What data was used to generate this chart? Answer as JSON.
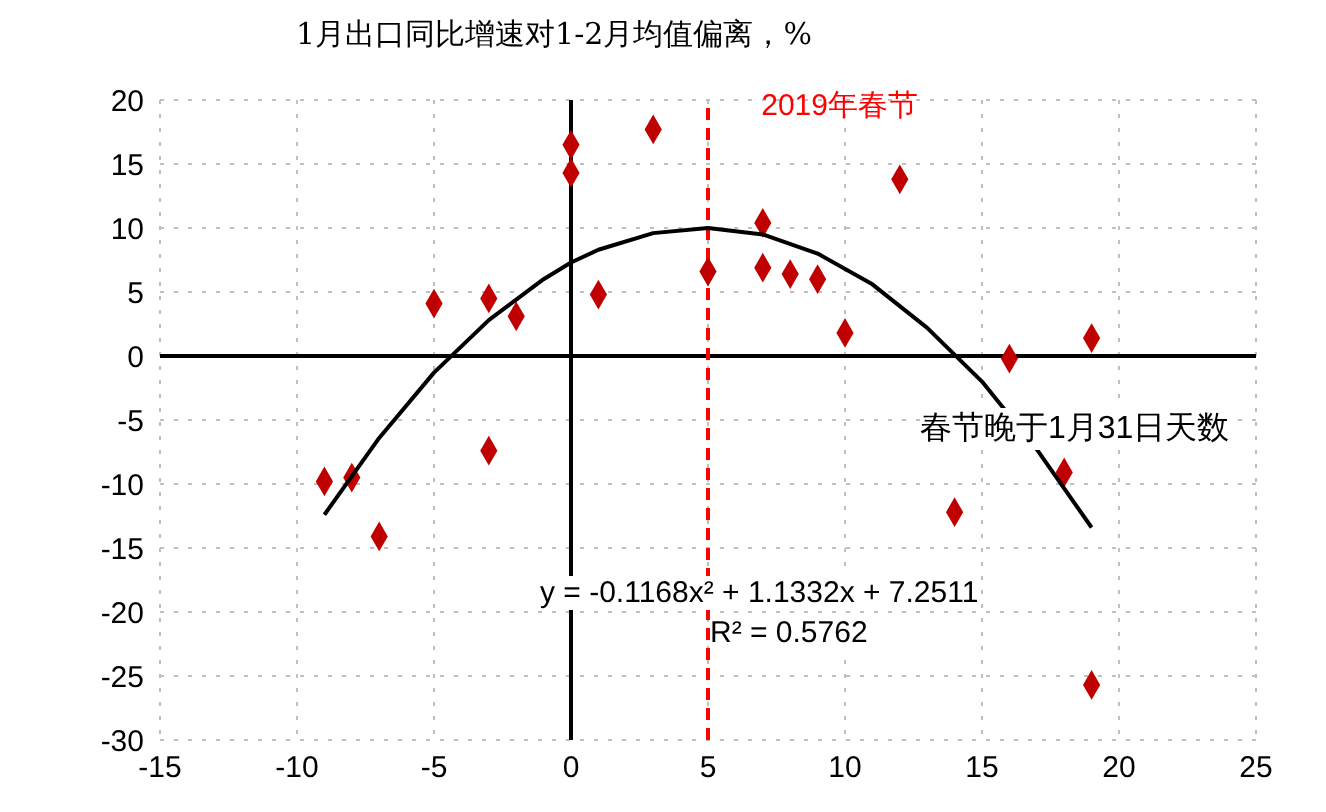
{
  "chart_data": {
    "type": "scatter",
    "ylabel": "1月出口同比增速对1-2月均值偏离，%",
    "xlabel": "春节晚于1月31日天数",
    "xlim": [
      -15,
      25
    ],
    "xticks": [
      -15,
      -10,
      -5,
      0,
      5,
      10,
      15,
      20,
      25
    ],
    "ylim": [
      -30,
      20
    ],
    "yticks": [
      -30,
      -25,
      -20,
      -15,
      -10,
      -5,
      0,
      5,
      10,
      15,
      20
    ],
    "grid": true,
    "series": [
      {
        "color": "#c00000",
        "marker": "diamond",
        "x": [
          0,
          0,
          3,
          -5,
          -3,
          -2,
          1,
          5,
          -3,
          7,
          7,
          8,
          9,
          10,
          12,
          16,
          19,
          -9,
          -8,
          -7,
          18,
          14,
          19
        ],
        "values": [
          16.5,
          14.3,
          17.7,
          4.1,
          4.5,
          3.1,
          4.8,
          6.6,
          -7.4,
          10.4,
          6.9,
          6.4,
          6.0,
          1.8,
          13.8,
          -0.2,
          1.4,
          -9.8,
          -9.5,
          -14.1,
          -9.1,
          -12.2,
          -25.7
        ]
      },
      {
        "type": "line",
        "color": "#000000",
        "marker": "none",
        "line_style": "solid",
        "x": [
          -9,
          -7,
          -5,
          -3,
          -1,
          0,
          1,
          3,
          5,
          7,
          9,
          11,
          13,
          15,
          17,
          19
        ],
        "values": [
          -12.4,
          -6.4,
          -1.3,
          2.8,
          6.0,
          7.3,
          8.3,
          9.6,
          10.0,
          9.5,
          8.0,
          5.6,
          2.2,
          -2.0,
          -7.3,
          -13.4
        ]
      }
    ],
    "ref_lines": [
      {
        "axis": "x",
        "value": 5,
        "label": "2019年春节",
        "color": "#ff0000",
        "line_style": "dashed"
      }
    ],
    "annotations": [
      "y = -0.1168x² + 1.1332x + 7.2511",
      "R² = 0.5762"
    ]
  }
}
